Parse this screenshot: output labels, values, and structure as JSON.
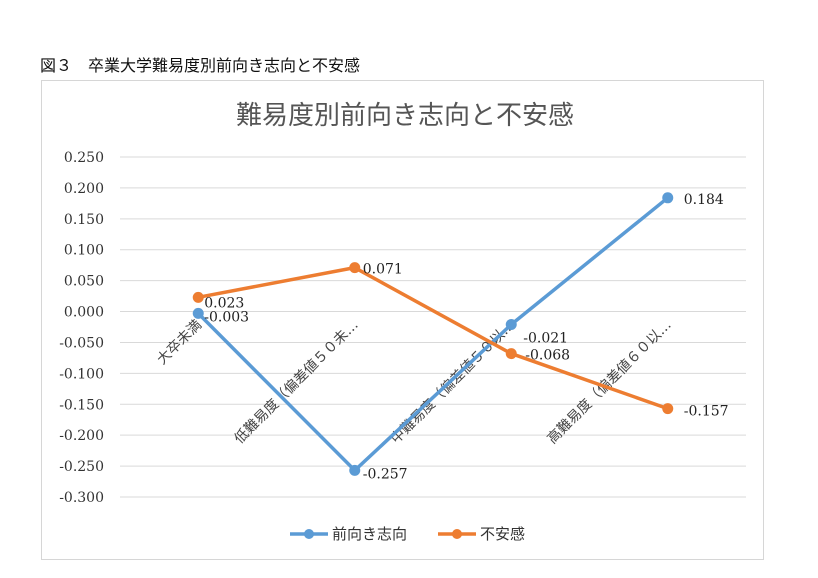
{
  "caption": "図３　卒業大学難易度別前向き志向と不安感",
  "chart_data": {
    "type": "line",
    "title": "難易度別前向き志向と不安感",
    "categories": [
      "大卒未満",
      "低難易度（偏差値５０未…",
      "中難易度（偏差値５０以…",
      "高難易度（偏差値６０以…"
    ],
    "ylim": [
      -0.3,
      0.25
    ],
    "yticks": [
      "0.250",
      "0.200",
      "0.150",
      "0.100",
      "0.050",
      "0.000",
      "-0.050",
      "-0.100",
      "-0.150",
      "-0.200",
      "-0.250",
      "-0.300"
    ],
    "grid": true,
    "legend_position": "bottom",
    "series": [
      {
        "name": "前向き志向",
        "color": "#5b9bd5",
        "values": [
          -0.003,
          -0.257,
          -0.021,
          0.184
        ],
        "labels": [
          "-0.003",
          "-0.257",
          "-0.021",
          "0.184"
        ]
      },
      {
        "name": "不安感",
        "color": "#ed7d31",
        "values": [
          0.023,
          0.071,
          -0.068,
          -0.157
        ],
        "labels": [
          "0.023",
          "0.071",
          "-0.068",
          "-0.157"
        ]
      }
    ]
  }
}
